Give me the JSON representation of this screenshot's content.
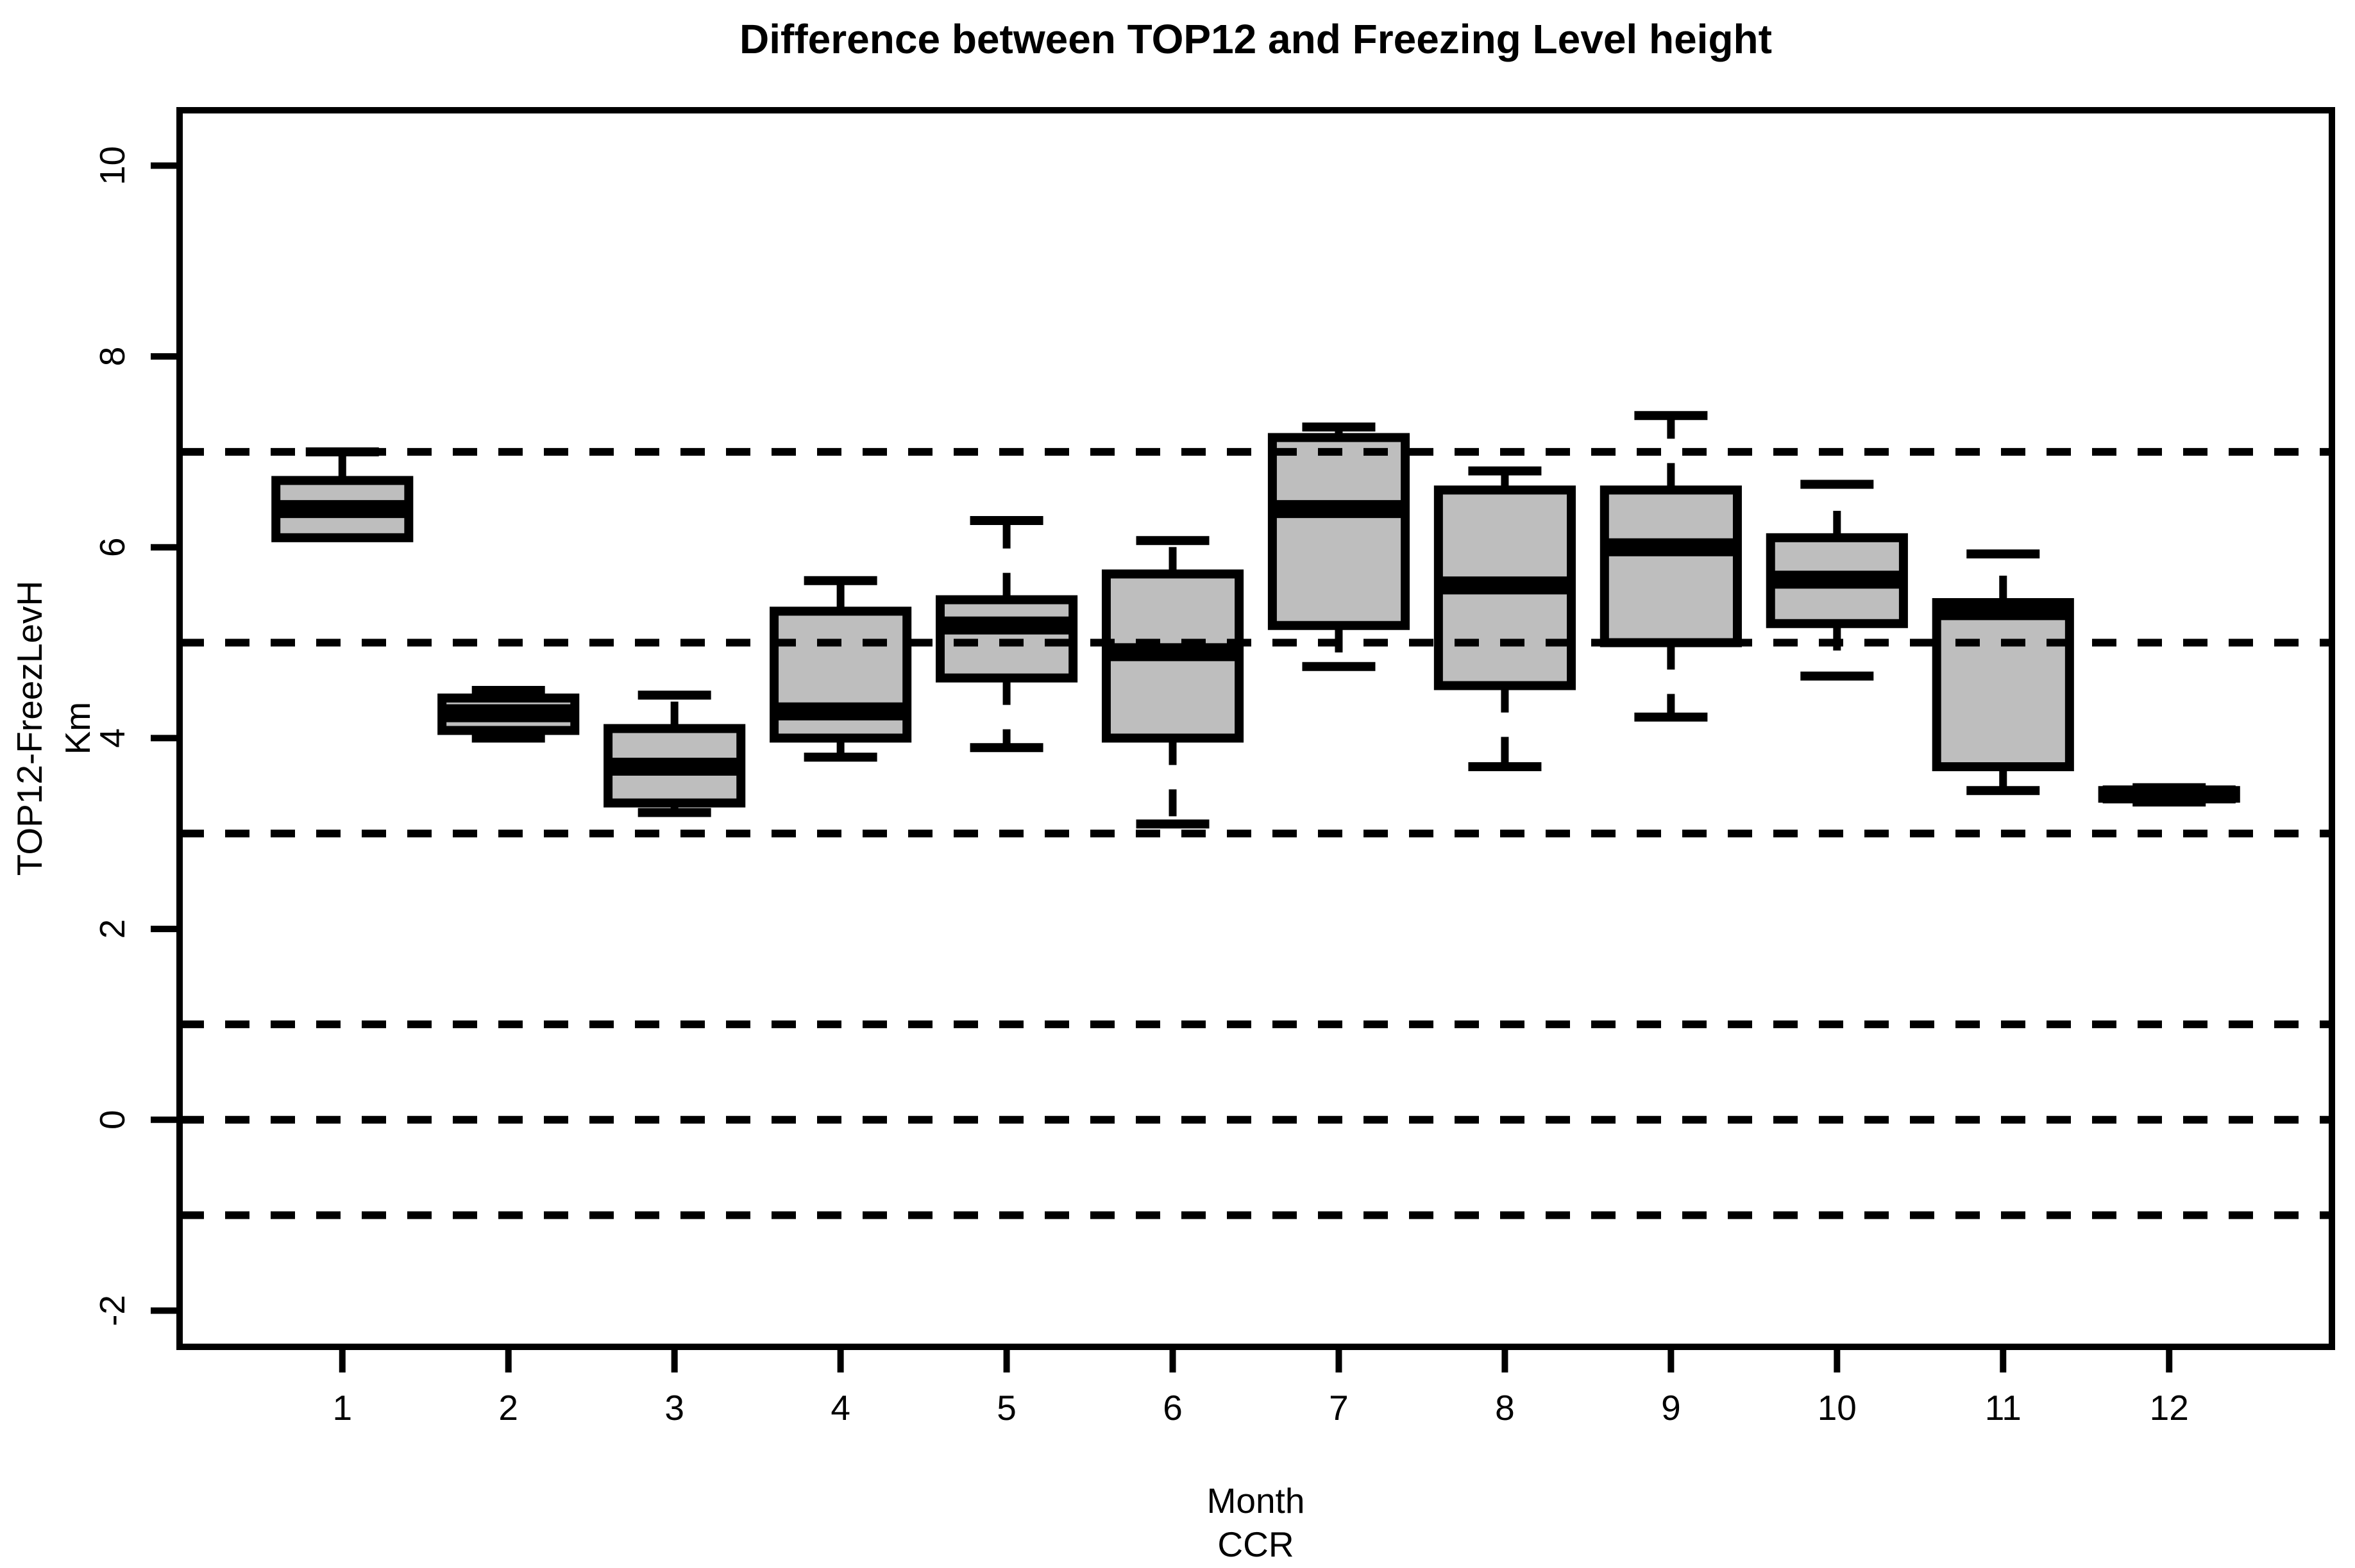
{
  "title": "Difference between TOP12 and Freezing Level height",
  "y_axis": {
    "label": "TOP12-FreezLevH",
    "unit": "Km",
    "tick_labels": [
      "-2",
      "0",
      "2",
      "4",
      "6",
      "8",
      "10"
    ]
  },
  "x_axis": {
    "label": "Month",
    "sublabel": "CCR",
    "tick_labels": [
      "1",
      "2",
      "3",
      "4",
      "5",
      "6",
      "7",
      "8",
      "9",
      "10",
      "11",
      "12"
    ]
  },
  "chart_data": {
    "type": "boxplot",
    "title": "Difference between TOP12 and Freezing Level height",
    "xlabel": "Month",
    "xlabel_sub": "CCR",
    "ylabel": "TOP12-FreezLevH",
    "ylabel_unit": "Km",
    "categories": [
      "1",
      "2",
      "3",
      "4",
      "5",
      "6",
      "7",
      "8",
      "9",
      "10",
      "11",
      "12"
    ],
    "ylim": [
      -2.38,
      10.58
    ],
    "y_ticks": [
      -2,
      0,
      2,
      4,
      6,
      8,
      10
    ],
    "gridlines_y": [
      7,
      5,
      3,
      1,
      0,
      -1
    ],
    "grid_linestyle": "dashed",
    "legend": "none",
    "boxes": [
      {
        "category": "1",
        "min": 6.1,
        "q1": 6.1,
        "median": 6.4,
        "q3": 6.7,
        "max": 7.0
      },
      {
        "category": "2",
        "min": 4.0,
        "q1": 4.08,
        "median": 4.26,
        "q3": 4.42,
        "max": 4.5
      },
      {
        "category": "3",
        "min": 3.22,
        "q1": 3.32,
        "median": 3.7,
        "q3": 4.1,
        "max": 4.45
      },
      {
        "category": "4",
        "min": 3.8,
        "q1": 4.0,
        "median": 4.28,
        "q3": 5.33,
        "max": 5.65
      },
      {
        "category": "5",
        "min": 3.9,
        "q1": 4.63,
        "median": 5.18,
        "q3": 5.45,
        "max": 6.28
      },
      {
        "category": "6",
        "min": 3.1,
        "q1": 4.0,
        "median": 4.9,
        "q3": 5.72,
        "max": 6.07
      },
      {
        "category": "7",
        "min": 4.75,
        "q1": 5.18,
        "median": 6.4,
        "q3": 7.15,
        "max": 7.26
      },
      {
        "category": "8",
        "min": 3.7,
        "q1": 4.55,
        "median": 5.6,
        "q3": 6.6,
        "max": 6.8
      },
      {
        "category": "9",
        "min": 4.22,
        "q1": 5.0,
        "median": 6.0,
        "q3": 6.6,
        "max": 7.38
      },
      {
        "category": "10",
        "min": 4.65,
        "q1": 5.2,
        "median": 5.66,
        "q3": 6.1,
        "max": 6.66
      },
      {
        "category": "11",
        "min": 3.45,
        "q1": 3.7,
        "median": 5.33,
        "q3": 5.42,
        "max": 5.93
      },
      {
        "category": "12",
        "min": 3.33,
        "q1": 3.37,
        "median": 3.41,
        "q3": 3.45,
        "max": 3.48
      }
    ],
    "colors": {
      "box_fill": "#BEBEBE",
      "line": "#000000",
      "background": "#FFFFFF"
    }
  }
}
